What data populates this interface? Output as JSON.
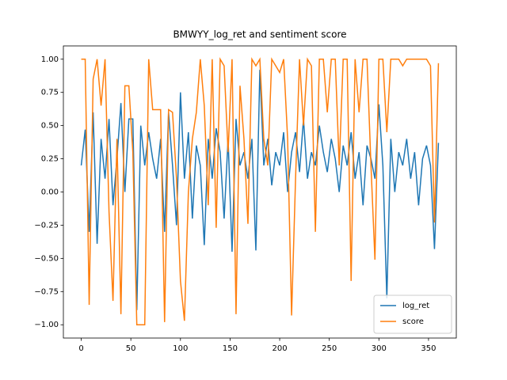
{
  "chart_data": {
    "type": "line",
    "title": "BMWYY_log_ret and sentiment score",
    "x": [
      0,
      4,
      8,
      12,
      16,
      20,
      24,
      28,
      32,
      36,
      40,
      44,
      48,
      52,
      56,
      60,
      64,
      68,
      72,
      76,
      80,
      84,
      88,
      92,
      96,
      100,
      104,
      108,
      112,
      116,
      120,
      124,
      128,
      132,
      136,
      140,
      144,
      148,
      152,
      156,
      160,
      164,
      168,
      172,
      176,
      180,
      184,
      188,
      192,
      196,
      200,
      204,
      208,
      212,
      216,
      220,
      224,
      228,
      232,
      236,
      240,
      244,
      248,
      252,
      256,
      260,
      264,
      268,
      272,
      276,
      280,
      284,
      288,
      292,
      296,
      300,
      304,
      308,
      312,
      316,
      320,
      324,
      328,
      332,
      336,
      340,
      344,
      348,
      352,
      356,
      360
    ],
    "series": [
      {
        "name": "log_ret",
        "color": "#1f77b4",
        "values": [
          0.2,
          0.47,
          -0.3,
          0.6,
          -0.39,
          0.4,
          0.1,
          0.55,
          -0.1,
          0.25,
          0.67,
          0.0,
          0.55,
          0.55,
          -0.89,
          0.5,
          0.2,
          0.45,
          0.25,
          0.1,
          0.4,
          -0.3,
          0.6,
          0.2,
          -0.25,
          0.75,
          0.1,
          0.45,
          -0.2,
          0.35,
          0.2,
          -0.4,
          0.4,
          0.1,
          0.48,
          0.3,
          -0.2,
          0.4,
          -0.45,
          0.55,
          0.2,
          0.3,
          0.1,
          0.4,
          -0.44,
          0.92,
          0.2,
          0.4,
          0.05,
          0.3,
          0.2,
          0.45,
          0.0,
          0.3,
          0.45,
          0.15,
          0.55,
          0.1,
          0.3,
          0.2,
          0.5,
          0.3,
          0.15,
          0.4,
          0.25,
          0.0,
          0.35,
          0.2,
          0.45,
          0.1,
          0.3,
          -0.1,
          0.35,
          0.25,
          0.1,
          0.66,
          0.2,
          -0.8,
          0.4,
          0.0,
          0.3,
          0.2,
          0.4,
          0.1,
          0.3,
          -0.1,
          0.25,
          0.35,
          0.2,
          -0.43,
          0.37
        ]
      },
      {
        "name": "score",
        "color": "#ff7f0e",
        "values": [
          1,
          1,
          -0.85,
          0.85,
          1,
          0.65,
          1,
          -0.15,
          -0.82,
          0.4,
          -0.92,
          0.8,
          0.8,
          0.3,
          -1.0,
          -1.0,
          -1.0,
          1.0,
          0.62,
          0.62,
          0.62,
          -0.98,
          0.62,
          0.6,
          0.1,
          -0.67,
          -0.97,
          0.0,
          0.4,
          0.6,
          1.0,
          0.65,
          -0.1,
          1.0,
          -0.27,
          1.0,
          0.95,
          0.3,
          1.0,
          -0.92,
          0.8,
          0.4,
          -0.24,
          1.0,
          0.95,
          1.0,
          0.4,
          0.2,
          1.0,
          0.95,
          0.9,
          1.0,
          0.4,
          -0.93,
          0.1,
          1.0,
          0.5,
          1.0,
          0.95,
          -0.3,
          1.0,
          1.0,
          0.6,
          1.0,
          1.0,
          0.2,
          1.0,
          1.0,
          -0.67,
          1.0,
          0.6,
          1.0,
          1.0,
          0.2,
          -0.51,
          1.0,
          1.0,
          0.45,
          1.0,
          1.0,
          1.0,
          0.95,
          1.0,
          1.0,
          1.0,
          1.0,
          1.0,
          1.0,
          0.95,
          -0.23,
          0.97
        ]
      }
    ],
    "xlim": [
      -18,
      378
    ],
    "xticks": [
      0,
      50,
      100,
      150,
      200,
      250,
      300,
      350
    ],
    "ylim": [
      -1.1,
      1.1
    ],
    "yticks": [
      {
        "value": -1,
        "label": "−1.00"
      },
      {
        "value": -0.75,
        "label": "−0.75"
      },
      {
        "value": -0.5,
        "label": "−0.50"
      },
      {
        "value": -0.25,
        "label": "−0.25"
      },
      {
        "value": 0,
        "label": "0.00"
      },
      {
        "value": 0.25,
        "label": "0.25"
      },
      {
        "value": 0.5,
        "label": "0.50"
      },
      {
        "value": 0.75,
        "label": "0.75"
      },
      {
        "value": 1,
        "label": "1.00"
      }
    ],
    "legend": "lower right"
  }
}
